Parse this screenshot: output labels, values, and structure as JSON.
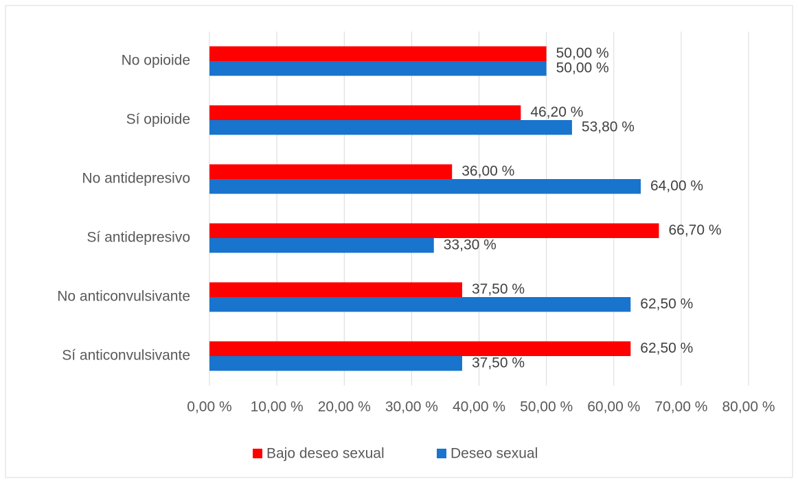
{
  "chart_data": {
    "type": "barh",
    "categories": [
      "No opioide",
      "Sí opioide",
      "No antidepresivo",
      "Sí antidepresivo",
      "No anticonvulsivante",
      "Sí anticonvulsivante"
    ],
    "series": [
      {
        "name": "Bajo deseo sexual",
        "color": "#ff0000",
        "values": [
          50,
          46.2,
          36,
          66.7,
          37.5,
          62.5
        ],
        "value_labels": [
          "50,00 %",
          "46,20 %",
          "36,00 %",
          "66,70 %",
          "37,50 %",
          "62,50 %"
        ]
      },
      {
        "name": "Deseo sexual",
        "color": "#1874cd",
        "values": [
          50,
          53.8,
          64,
          33.3,
          62.5,
          37.5
        ],
        "value_labels": [
          "50,00 %",
          "53,80 %",
          "64,00 %",
          "33,30 %",
          "62,50 %",
          "37,50 %"
        ]
      }
    ],
    "xlim": [
      0,
      80
    ],
    "xticks": [
      {
        "value": 0,
        "label": "0,00 %"
      },
      {
        "value": 10,
        "label": "10,00 %"
      },
      {
        "value": 20,
        "label": "20,00 %"
      },
      {
        "value": 30,
        "label": "30,00 %"
      },
      {
        "value": 40,
        "label": "40,00 %"
      },
      {
        "value": 50,
        "label": "50,00 %"
      },
      {
        "value": 60,
        "label": "60,00 %"
      },
      {
        "value": 70,
        "label": "70,00 %"
      },
      {
        "value": 80,
        "label": "80,00 %"
      }
    ],
    "grid": true,
    "legend": "bottom"
  }
}
